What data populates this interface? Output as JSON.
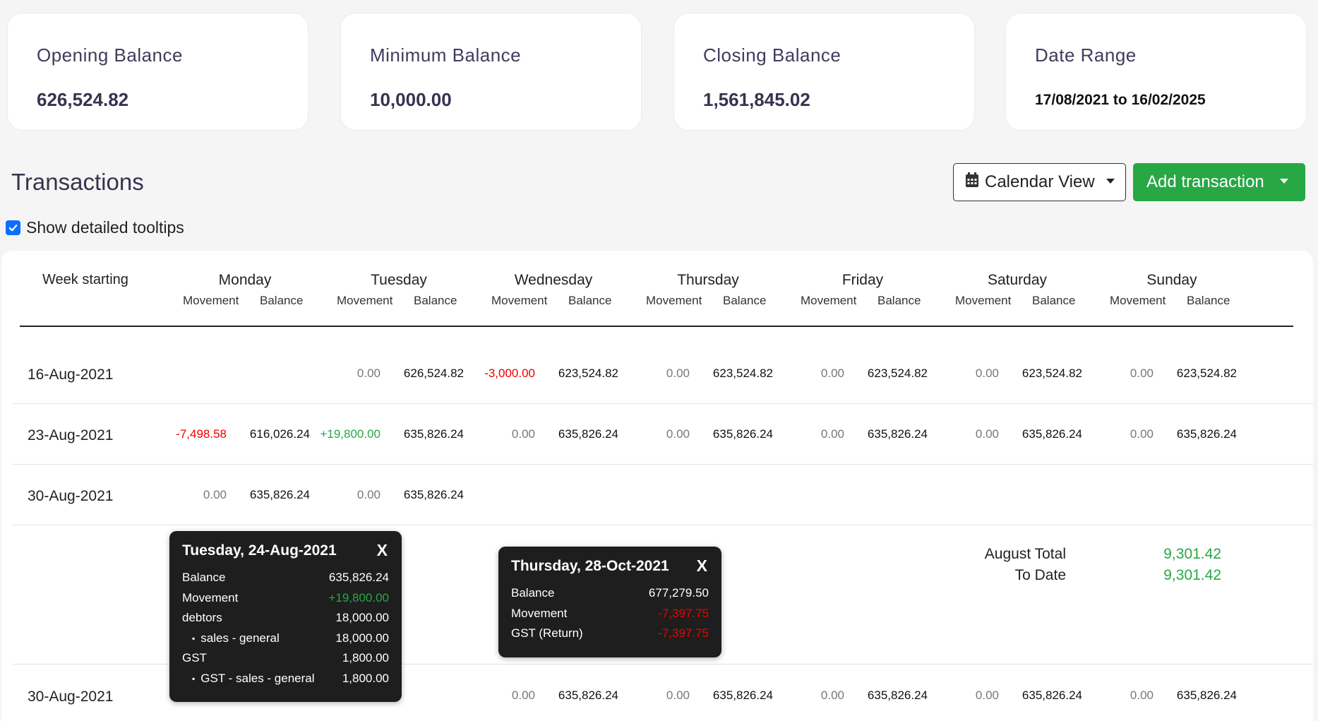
{
  "cards": [
    {
      "label": "Opening Balance",
      "value": "626,524.82"
    },
    {
      "label": "Minimum Balance",
      "value": "10,000.00"
    },
    {
      "label": "Closing Balance",
      "value": "1,561,845.02"
    },
    {
      "label": "Date Range",
      "value": "17/08/2021 to 16/02/2025"
    }
  ],
  "transactions": {
    "title": "Transactions",
    "calendar_view_label": "Calendar View",
    "add_transaction_label": "Add transaction",
    "show_tooltips_label": "Show detailed tooltips",
    "show_tooltips_checked": true
  },
  "table": {
    "week_header": "Week starting",
    "days": [
      "Monday",
      "Tuesday",
      "Wednesday",
      "Thursday",
      "Friday",
      "Saturday",
      "Sunday"
    ],
    "movement_label": "Movement",
    "balance_label": "Balance",
    "rows": [
      {
        "week": "16-Aug-2021",
        "cells": [
          null,
          {
            "mv": "0.00",
            "bal": "626,524.82",
            "dir": "zero"
          },
          {
            "mv": "-3,000.00",
            "bal": "623,524.82",
            "dir": "neg"
          },
          {
            "mv": "0.00",
            "bal": "623,524.82",
            "dir": "zero"
          },
          {
            "mv": "0.00",
            "bal": "623,524.82",
            "dir": "zero"
          },
          {
            "mv": "0.00",
            "bal": "623,524.82",
            "dir": "zero"
          },
          {
            "mv": "0.00",
            "bal": "623,524.82",
            "dir": "zero"
          }
        ]
      },
      {
        "week": "23-Aug-2021",
        "cells": [
          {
            "mv": "-7,498.58",
            "bal": "616,026.24",
            "dir": "neg"
          },
          {
            "mv": "+19,800.00",
            "bal": "635,826.24",
            "dir": "pos"
          },
          {
            "mv": "0.00",
            "bal": "635,826.24",
            "dir": "zero"
          },
          {
            "mv": "0.00",
            "bal": "635,826.24",
            "dir": "zero"
          },
          {
            "mv": "0.00",
            "bal": "635,826.24",
            "dir": "zero"
          },
          {
            "mv": "0.00",
            "bal": "635,826.24",
            "dir": "zero"
          },
          {
            "mv": "0.00",
            "bal": "635,826.24",
            "dir": "zero"
          }
        ]
      },
      {
        "week": "30-Aug-2021",
        "cells": [
          {
            "mv": "0.00",
            "bal": "635,826.24",
            "dir": "zero"
          },
          {
            "mv": "0.00",
            "bal": "635,826.24",
            "dir": "zero"
          },
          null,
          null,
          null,
          null,
          null
        ]
      },
      {
        "week": "30-Aug-2021",
        "cells": [
          null,
          null,
          {
            "mv": "0.00",
            "bal": "635,826.24",
            "dir": "zero"
          },
          {
            "mv": "0.00",
            "bal": "635,826.24",
            "dir": "zero"
          },
          {
            "mv": "0.00",
            "bal": "635,826.24",
            "dir": "zero"
          },
          {
            "mv": "0.00",
            "bal": "635,826.24",
            "dir": "zero"
          },
          {
            "mv": "0.00",
            "bal": "635,826.24",
            "dir": "zero"
          }
        ]
      }
    ],
    "totals": {
      "month_label": "August Total",
      "month_value": "9,301.42",
      "todate_label": "To Date",
      "todate_value": "9,301.42"
    }
  },
  "tooltips": [
    {
      "title": "Tuesday, 24-Aug-2021",
      "close": "X",
      "rows": [
        {
          "k": "Balance",
          "v": "635,826.24",
          "style": ""
        },
        {
          "k": "Movement",
          "v": "+19,800.00",
          "style": "pos"
        },
        {
          "k": "debtors",
          "v": "18,000.00",
          "style": ""
        },
        {
          "k": "sales - general",
          "v": "18,000.00",
          "style": "",
          "sub": true
        },
        {
          "k": "GST",
          "v": "1,800.00",
          "style": ""
        },
        {
          "k": "GST - sales - general",
          "v": "1,800.00",
          "style": "",
          "sub": true
        }
      ]
    },
    {
      "title": "Thursday, 28-Oct-2021",
      "close": "X",
      "rows": [
        {
          "k": "Balance",
          "v": "677,279.50",
          "style": ""
        },
        {
          "k": "Movement",
          "v": "-7,397.75",
          "style": "neg"
        },
        {
          "k": "GST (Return)",
          "v": "-7,397.75",
          "style": "neg"
        }
      ]
    }
  ],
  "colors": {
    "accent_green": "#28a745",
    "negative_red": "#e00000",
    "checkbox_blue": "#0d6efd"
  }
}
